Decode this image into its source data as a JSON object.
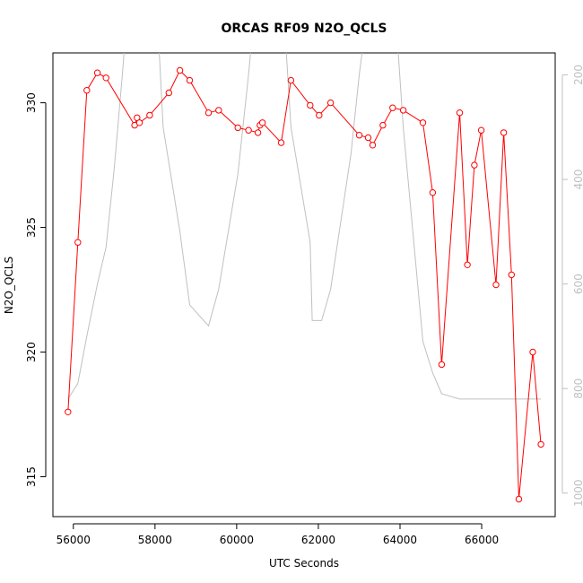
{
  "chart_data": {
    "type": "line",
    "title": "ORCAS RF09 N2O_QCLS",
    "xlabel": "UTC Seconds",
    "ylabel": "N2O_QCLS",
    "xlim": [
      55500,
      67800
    ],
    "ylim": [
      313.4,
      332
    ],
    "y2lim": [
      1045,
      158
    ],
    "x_ticks": [
      56000,
      58000,
      60000,
      62000,
      64000,
      66000
    ],
    "y_ticks": [
      315,
      320,
      325,
      330
    ],
    "y2_ticks": [
      200,
      400,
      600,
      800,
      1000
    ],
    "grid": false,
    "colors": {
      "primary": "#ff0000",
      "secondary": "#c0c0c0",
      "axis": "#000000"
    },
    "series": [
      {
        "axis": "left",
        "values": [
          [
            55870,
            317.6
          ],
          [
            56110,
            324.4
          ],
          [
            56330,
            330.5
          ],
          [
            56590,
            331.2
          ],
          [
            56800,
            331.0
          ],
          [
            57500,
            329.1
          ],
          [
            57560,
            329.4
          ],
          [
            57620,
            329.2
          ],
          [
            57870,
            329.5
          ],
          [
            58340,
            330.4
          ],
          [
            58610,
            331.3
          ],
          [
            58850,
            330.9
          ],
          [
            59310,
            329.6
          ],
          [
            59560,
            329.7
          ],
          [
            60030,
            329.0
          ],
          [
            60290,
            328.9
          ],
          [
            60520,
            328.8
          ],
          [
            60570,
            329.1
          ],
          [
            60630,
            329.2
          ],
          [
            61090,
            328.4
          ],
          [
            61330,
            330.9
          ],
          [
            61800,
            329.9
          ],
          [
            62020,
            329.5
          ],
          [
            62300,
            330.0
          ],
          [
            63000,
            328.7
          ],
          [
            63220,
            328.6
          ],
          [
            63330,
            328.3
          ],
          [
            63580,
            329.1
          ],
          [
            63820,
            329.8
          ],
          [
            64080,
            329.7
          ],
          [
            64560,
            329.2
          ],
          [
            64800,
            326.4
          ],
          [
            65020,
            319.5
          ],
          [
            65460,
            329.6
          ],
          [
            65650,
            323.5
          ],
          [
            65820,
            327.5
          ],
          [
            65990,
            328.9
          ],
          [
            66350,
            322.7
          ],
          [
            66540,
            328.8
          ],
          [
            66730,
            323.1
          ],
          [
            66910,
            314.1
          ],
          [
            67250,
            320.0
          ],
          [
            67450,
            316.3
          ]
        ]
      },
      {
        "axis": "right",
        "values": [
          [
            55870,
            820
          ],
          [
            56110,
            790
          ],
          [
            56330,
            700
          ],
          [
            56590,
            600
          ],
          [
            56800,
            530
          ],
          [
            57000,
            380
          ],
          [
            57200,
            200
          ],
          [
            57400,
            0
          ],
          [
            58000,
            0
          ],
          [
            58200,
            300
          ],
          [
            58610,
            500
          ],
          [
            58850,
            640
          ],
          [
            59310,
            680
          ],
          [
            59560,
            610
          ],
          [
            60030,
            390
          ],
          [
            60290,
            200
          ],
          [
            60520,
            0
          ],
          [
            61090,
            0
          ],
          [
            61330,
            300
          ],
          [
            61800,
            520
          ],
          [
            61850,
            670
          ],
          [
            62080,
            670
          ],
          [
            62300,
            610
          ],
          [
            62800,
            350
          ],
          [
            63000,
            200
          ],
          [
            63330,
            0
          ],
          [
            63820,
            0
          ],
          [
            64080,
            300
          ],
          [
            64560,
            710
          ],
          [
            64800,
            770
          ],
          [
            65020,
            810
          ],
          [
            65460,
            820
          ],
          [
            66000,
            820
          ],
          [
            67450,
            820
          ]
        ]
      }
    ]
  }
}
